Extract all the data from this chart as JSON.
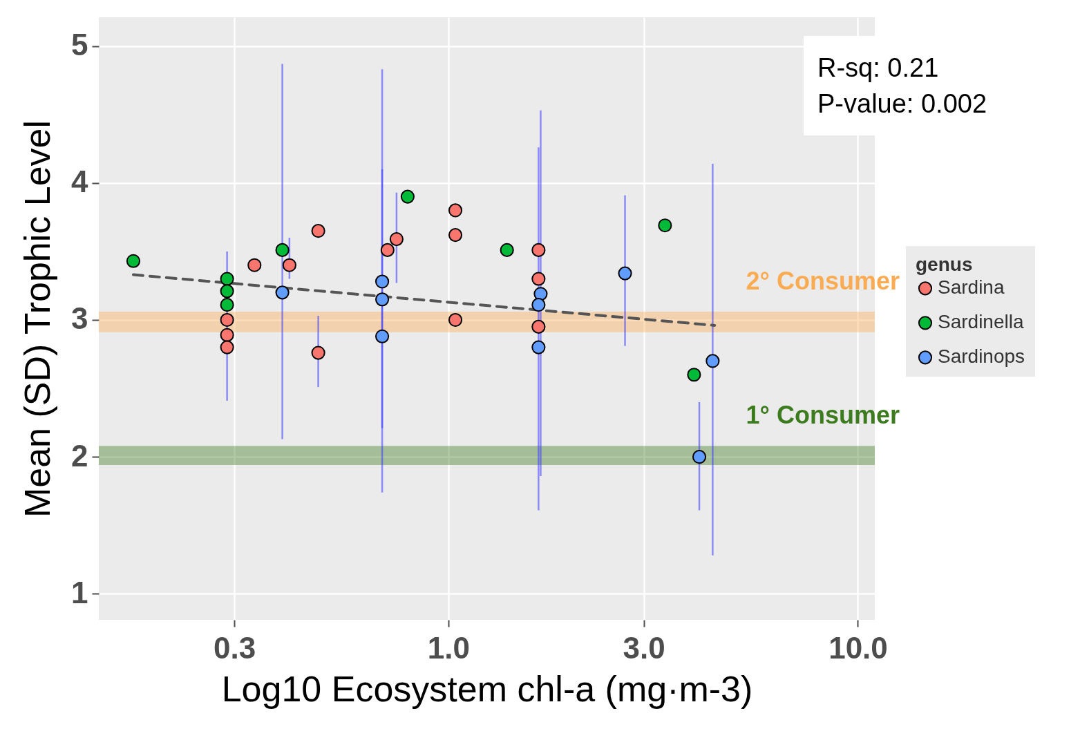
{
  "chart_data": {
    "type": "scatter",
    "xlabel": "Log10 Ecosystem chl-a (mg·m-3)",
    "ylabel": "Mean (SD) Trophic Level",
    "legend_title": "genus",
    "legend": "right",
    "log": "x",
    "grid": true,
    "marker": "circle",
    "xlim": [
      0.14,
      11
    ],
    "xticks": [
      {
        "value": 0.3,
        "label": "0.3"
      },
      {
        "value": 1,
        "label": "1.0"
      },
      {
        "value": 3,
        "label": "3.0"
      },
      {
        "value": 10,
        "label": "10.0"
      }
    ],
    "ylim": [
      0.81,
      5.21
    ],
    "yticks": [
      1,
      2,
      3,
      4,
      5
    ],
    "series": [
      {
        "name": "Sardina",
        "color": "#f8766d",
        "x": [
          0.336,
          0.409,
          0.481,
          0.481,
          0.71,
          0.747,
          1.04,
          1.04,
          1.04,
          1.66,
          1.66,
          1.66,
          0.288,
          0.288,
          0.288
        ],
        "values": [
          3.4,
          3.4,
          3.65,
          2.76,
          3.51,
          3.59,
          3.8,
          3.62,
          3.0,
          3.51,
          3.3,
          2.95,
          3.0,
          2.89,
          2.8
        ],
        "errors": [
          null,
          [
            3.3,
            3.6
          ],
          null,
          [
            2.51,
            3.03
          ],
          null,
          [
            3.27,
            3.93
          ],
          null,
          null,
          null,
          null,
          null,
          [
            1.61,
            4.26
          ],
          [
            2.41,
            3.5
          ],
          null,
          null
        ]
      },
      {
        "name": "Sardinella",
        "color": "#00ba38",
        "x": [
          0.17,
          0.288,
          0.288,
          0.288,
          0.393,
          0.795,
          1.39,
          3.38,
          3.98
        ],
        "values": [
          3.43,
          3.3,
          3.21,
          3.11,
          3.51,
          3.9,
          3.51,
          3.69,
          2.6
        ],
        "errors": [
          null,
          null,
          null,
          null,
          [
            2.13,
            4.87
          ],
          null,
          null,
          null,
          null
        ]
      },
      {
        "name": "Sardinops",
        "color": "#619cff",
        "x": [
          0.393,
          0.689,
          0.689,
          0.689,
          1.68,
          1.66,
          1.66,
          2.7,
          4.42,
          4.1
        ],
        "values": [
          3.2,
          3.28,
          3.15,
          2.88,
          3.19,
          3.11,
          2.8,
          3.34,
          2.7,
          2.0
        ],
        "errors": [
          null,
          [
            1.74,
            4.83
          ],
          [
            2.21,
            4.1
          ],
          null,
          [
            1.86,
            4.53
          ],
          null,
          null,
          [
            2.81,
            3.91
          ],
          [
            1.28,
            4.14
          ],
          [
            1.61,
            2.4
          ]
        ]
      },
      {
        "type": "line",
        "color": "#555555",
        "line_style": "dashed",
        "marker": "none",
        "x": [
          0.17,
          4.47
        ],
        "values": [
          3.33,
          2.96
        ]
      }
    ],
    "bands": [
      {
        "axis": "y",
        "from": 2.91,
        "to": 3.06,
        "label": "2° Consumer",
        "color": "#fbab52"
      },
      {
        "axis": "y",
        "from": 1.94,
        "to": 2.08,
        "label": "1° Consumer",
        "color": "#3d7b1f"
      }
    ],
    "annotations": [
      "R-sq: 0.21",
      "P-value: 0.002"
    ]
  }
}
